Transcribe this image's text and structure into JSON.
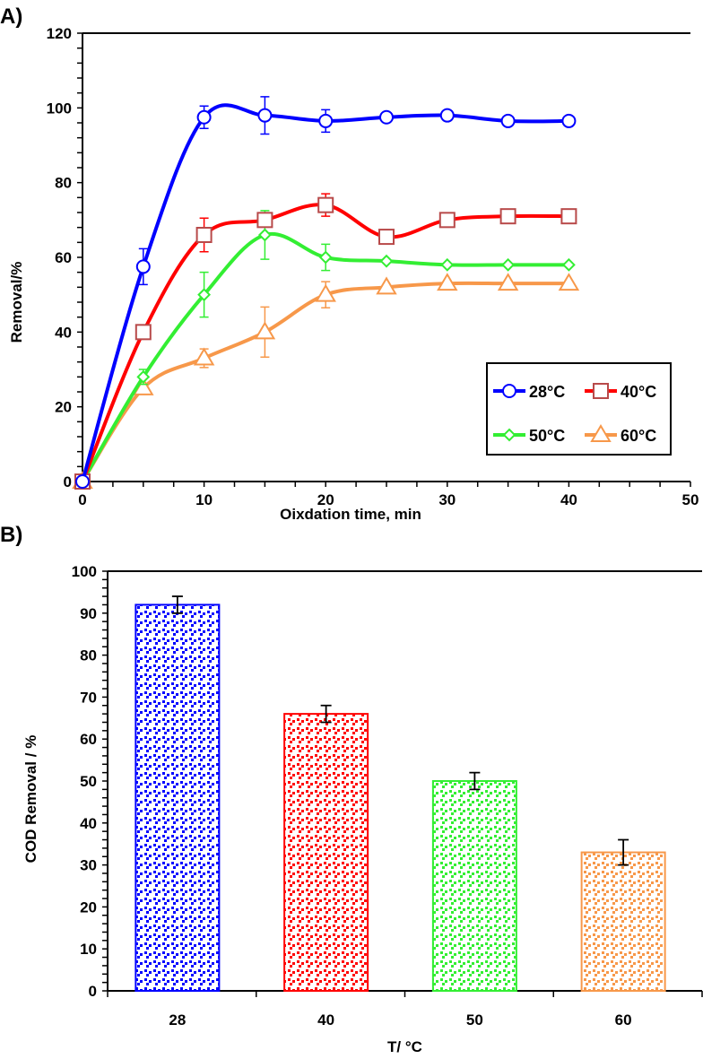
{
  "chart_data": [
    {
      "panel_label": "A)",
      "type": "line",
      "xlabel": "Oixdation time, min",
      "ylabel": "Removal/%",
      "xlim": [
        0,
        50
      ],
      "ylim": [
        0,
        120
      ],
      "xticks": [
        0,
        10,
        20,
        30,
        40,
        50
      ],
      "yticks": [
        0,
        20,
        40,
        60,
        80,
        100,
        120
      ],
      "legend_placement": "bottom-right",
      "x": [
        0,
        5,
        10,
        15,
        20,
        25,
        30,
        35,
        40
      ],
      "series": [
        {
          "name": "28°C",
          "color": "#0000ff",
          "marker": "circle",
          "values": [
            0,
            57.5,
            97.5,
            98,
            96.5,
            97.5,
            98,
            96.5,
            96.5
          ],
          "errors": [
            0,
            4.8,
            3,
            5,
            3,
            0,
            0,
            0,
            0
          ]
        },
        {
          "name": "40°C",
          "color": "#ff0000",
          "marker": "square",
          "values": [
            0,
            40,
            66,
            70,
            74,
            65.5,
            70,
            71,
            71
          ],
          "errors": [
            0,
            0,
            4.5,
            1,
            3,
            0,
            0,
            0,
            0
          ]
        },
        {
          "name": "50°C",
          "color": "#33ee33",
          "marker": "diamond",
          "values": [
            0,
            28,
            50,
            66,
            60,
            59,
            58,
            58,
            58
          ],
          "errors": [
            0,
            2,
            6,
            6.5,
            3.5,
            0,
            0,
            0,
            0
          ]
        },
        {
          "name": "60°C",
          "color": "#f7984a",
          "marker": "triangle",
          "values": [
            0,
            25,
            33,
            40,
            50,
            52,
            53,
            53,
            53
          ],
          "errors": [
            0,
            0,
            2.5,
            6.7,
            3.5,
            0,
            0,
            0,
            0
          ]
        }
      ]
    },
    {
      "panel_label": "B)",
      "type": "bar",
      "xlabel": "T/ °C",
      "ylabel": "COD Removal / %",
      "ylim": [
        0,
        100
      ],
      "yticks": [
        0,
        10,
        20,
        30,
        40,
        50,
        60,
        70,
        80,
        90,
        100
      ],
      "categories": [
        "28",
        "40",
        "50",
        "60"
      ],
      "values": [
        92,
        66,
        50,
        33
      ],
      "errors": [
        2,
        2,
        2,
        3
      ],
      "colors": [
        "#0000ff",
        "#ff0000",
        "#33ee33",
        "#f7984a"
      ]
    }
  ]
}
